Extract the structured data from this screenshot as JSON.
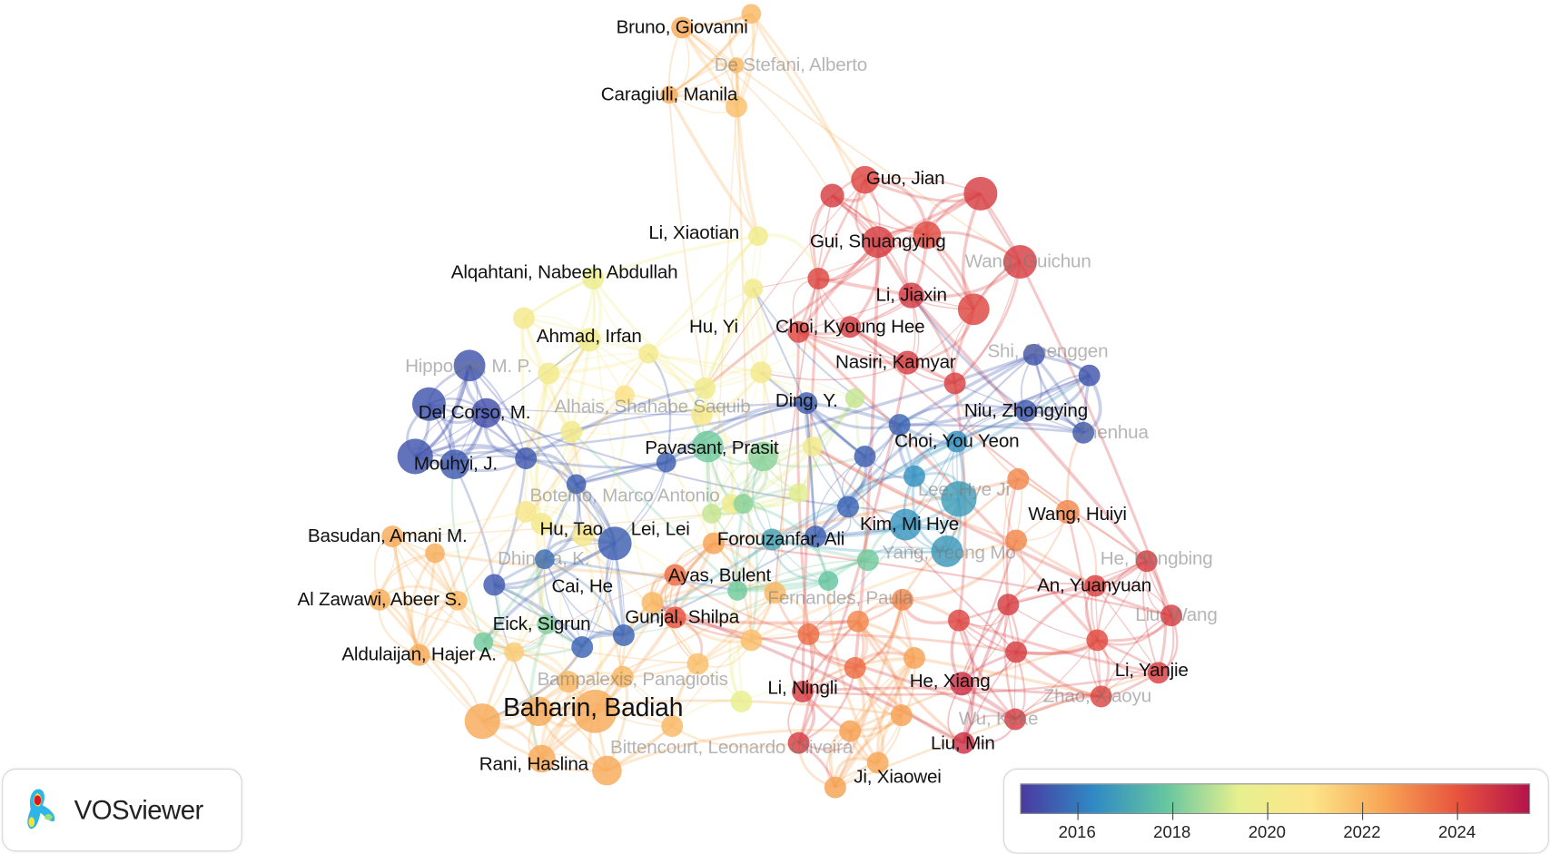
{
  "app": {
    "logo_text": "VOSviewer"
  },
  "legend": {
    "year_range": [
      2014.8,
      2025.5
    ],
    "ticks": [
      "2016",
      "2018",
      "2020",
      "2022",
      "2024"
    ],
    "colors": [
      "#4a3aa0",
      "#2f8ac4",
      "#66c6a0",
      "#e7f08e",
      "#fde58a",
      "#f7a555",
      "#e8543e",
      "#b5134a"
    ]
  },
  "network": {
    "labels": [
      {
        "name": "Bruno, Giovanni",
        "year": 2022.3
      },
      {
        "name": "De Stefani, Alberto",
        "year": 2022,
        "faded": true
      },
      {
        "name": "Caragiuli, Manila",
        "year": 2022.3
      },
      {
        "name": "Guo, Jian",
        "year": 2024.3
      },
      {
        "name": "Gui, Shuangying",
        "year": 2024.5
      },
      {
        "name": "Wang, Guichun",
        "year": 2024.5,
        "faded": true
      },
      {
        "name": "Li, Jiaxin",
        "year": 2024.6
      },
      {
        "name": "Li, Xiaotian",
        "year": 2020
      },
      {
        "name": "Alqahtani, Nabeeh Abdullah",
        "year": 2019.8
      },
      {
        "name": "Ahmad, Irfan",
        "year": 2020
      },
      {
        "name": "Hu, Yi",
        "year": 2020.2
      },
      {
        "name": "Choi, Kyoung Hee",
        "year": 2024.5
      },
      {
        "name": "Hippolyte, M. P.",
        "year": 2015.3,
        "faded": true
      },
      {
        "name": "Nasiri, Kamyar",
        "year": 2024.5
      },
      {
        "name": "Shi, Shenggen",
        "year": 2015.3,
        "faded": true
      },
      {
        "name": "Del Corso, M.",
        "year": 2015.2
      },
      {
        "name": "Alhais, Shahabe Saquib",
        "year": 2021,
        "faded": true
      },
      {
        "name": "Ding, Y.",
        "year": 2015.5
      },
      {
        "name": "Niu, Zhongying",
        "year": 2015.4
      },
      {
        "name": "Zhenhua",
        "year": 2015.4,
        "faded": true
      },
      {
        "name": "Choi, You Yeon",
        "year": 2016.5
      },
      {
        "name": "Mouhyi, J.",
        "year": 2015.4
      },
      {
        "name": "Pavasant, Prasit",
        "year": 2018
      },
      {
        "name": "Botelho, Marco Antonio",
        "year": 2022,
        "faded": true
      },
      {
        "name": "Lee, Hye Ji",
        "year": 2016.8,
        "faded": true
      },
      {
        "name": "Wang, Huiyi",
        "year": 2023
      },
      {
        "name": "Kim, Mi Hye",
        "year": 2016.6
      },
      {
        "name": "Basudan, Amani M.",
        "year": 2022.3
      },
      {
        "name": "Hu, Tao",
        "year": 2020.3
      },
      {
        "name": "Lei, Lei",
        "year": 2020.5
      },
      {
        "name": "Forouzanfar, Ali",
        "year": 2017
      },
      {
        "name": "Yang, Yeong Mo",
        "year": 2016.7,
        "faded": true
      },
      {
        "name": "He, Hongbing",
        "year": 2024.5,
        "faded": true
      },
      {
        "name": "Dhingra, K.",
        "year": 2015.8,
        "faded": true
      },
      {
        "name": "Cai, He",
        "year": 2019.5
      },
      {
        "name": "Ayas, Bulent",
        "year": 2018
      },
      {
        "name": "Fernandes, Paula",
        "year": 2017.8,
        "faded": true
      },
      {
        "name": "An, Yuanyuan",
        "year": 2024.4
      },
      {
        "name": "Al Zawawi, Abeer S.",
        "year": 2022.2
      },
      {
        "name": "Eick, Sigrun",
        "year": 2018.2
      },
      {
        "name": "Gunjal, Shilpa",
        "year": 2024
      },
      {
        "name": "Liu, Wang",
        "year": 2024.5,
        "faded": true
      },
      {
        "name": "Aldulaijan, Hajer A.",
        "year": 2022.3
      },
      {
        "name": "Bampalexis, Panagiotis",
        "year": 2022,
        "faded": true
      },
      {
        "name": "Li, Ningli",
        "year": 2024.5
      },
      {
        "name": "He, Xiang",
        "year": 2024.8
      },
      {
        "name": "Li, Yanjie",
        "year": 2024.5
      },
      {
        "name": "Zhao, Xiaoyu",
        "year": 2024.3,
        "faded": true
      },
      {
        "name": "Baharin, Badiah",
        "year": 2022.3,
        "big": true
      },
      {
        "name": "Wu, Keke",
        "year": 2024.5,
        "faded": true
      },
      {
        "name": "Bittencourt, Leonardo Oliveira",
        "year": 2019.5,
        "faded": true
      },
      {
        "name": "Liu, Min",
        "year": 2024.8
      },
      {
        "name": "Rani, Haslina",
        "year": 2022.3
      },
      {
        "name": "Ji, Xiaowei",
        "year": 2022.4
      }
    ]
  }
}
